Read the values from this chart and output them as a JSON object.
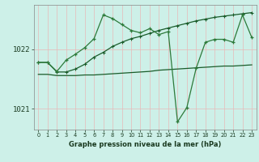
{
  "background_color": "#cdf0e8",
  "grid_color_v": "#e8b8b8",
  "grid_color_h": "#e8b8b8",
  "line_color1": "#1a5c2a",
  "line_color2": "#1a5c2a",
  "line_color3": "#2d7a3a",
  "title": "Graphe pression niveau de la mer (hPa)",
  "xlim": [
    -0.5,
    23.5
  ],
  "ylim": [
    1020.65,
    1022.75
  ],
  "xticks": [
    0,
    1,
    2,
    3,
    4,
    5,
    6,
    7,
    8,
    9,
    10,
    11,
    12,
    13,
    14,
    15,
    16,
    17,
    18,
    19,
    20,
    21,
    22,
    23
  ],
  "yticks": [
    1021,
    1022
  ],
  "s1_x": [
    0,
    1,
    2,
    3,
    4,
    5,
    6,
    7,
    8,
    9,
    10,
    11,
    12,
    13,
    14,
    15,
    16,
    17,
    18,
    19,
    20,
    21,
    22,
    23
  ],
  "s1_y": [
    1021.78,
    1021.78,
    1021.62,
    1021.62,
    1021.67,
    1021.75,
    1021.87,
    1021.95,
    1022.05,
    1022.12,
    1022.18,
    1022.22,
    1022.27,
    1022.32,
    1022.36,
    1022.4,
    1022.44,
    1022.48,
    1022.51,
    1022.54,
    1022.56,
    1022.58,
    1022.6,
    1022.62
  ],
  "s2_x": [
    0,
    1,
    2,
    3,
    4,
    5,
    6,
    7,
    8,
    9,
    10,
    11,
    12,
    13,
    14,
    15,
    16,
    17,
    18,
    19,
    20,
    21,
    22,
    23
  ],
  "s2_y": [
    1021.58,
    1021.58,
    1021.56,
    1021.56,
    1021.56,
    1021.57,
    1021.57,
    1021.58,
    1021.59,
    1021.6,
    1021.61,
    1021.62,
    1021.63,
    1021.65,
    1021.66,
    1021.67,
    1021.68,
    1021.69,
    1021.7,
    1021.71,
    1021.72,
    1021.72,
    1021.73,
    1021.74
  ],
  "s3_x": [
    0,
    1,
    2,
    3,
    4,
    5,
    6,
    7,
    8,
    9,
    10,
    11,
    12,
    13,
    14,
    15,
    16,
    17,
    18,
    19,
    20,
    21,
    22,
    23
  ],
  "s3_y": [
    1021.78,
    1021.78,
    1021.63,
    1021.82,
    1021.92,
    1022.03,
    1022.18,
    1022.58,
    1022.52,
    1022.42,
    1022.32,
    1022.28,
    1022.35,
    1022.25,
    1022.3,
    1020.78,
    1021.02,
    1021.68,
    1022.12,
    1022.17,
    1022.17,
    1022.12,
    1022.58,
    1022.2
  ]
}
